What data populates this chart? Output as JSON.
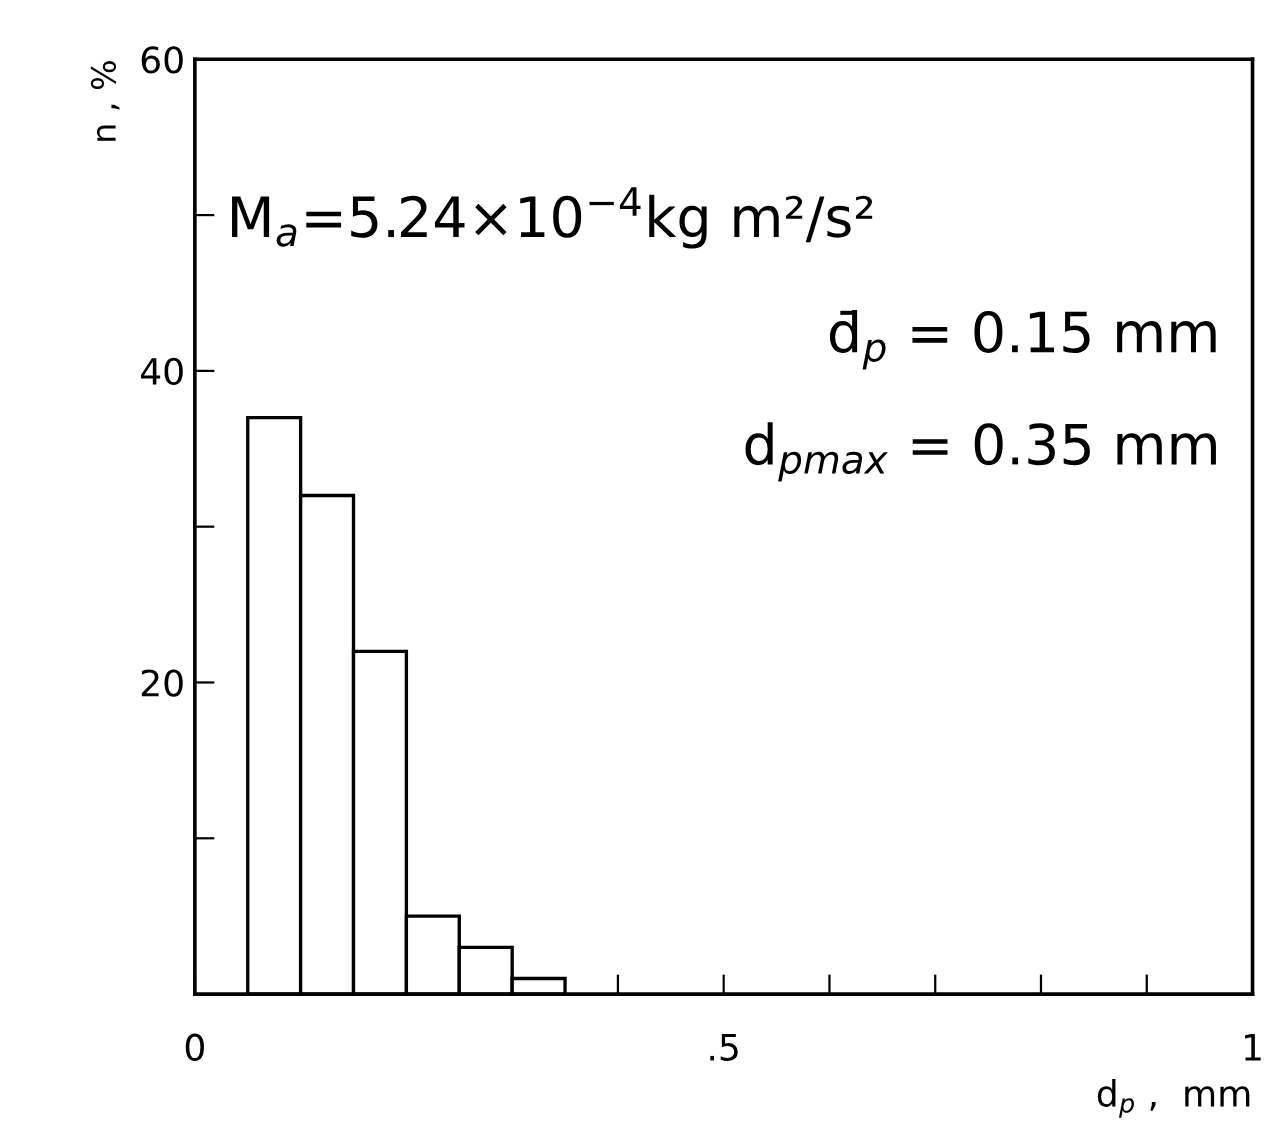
{
  "chart_data": {
    "type": "histogram",
    "xlabel": "d$_{p}$ ,  mm",
    "ylabel": "n , %",
    "bins": [
      0.05,
      0.1,
      0.15,
      0.2,
      0.25,
      0.3,
      0.35
    ],
    "values": [
      37,
      32,
      22,
      5,
      3,
      1
    ],
    "color": "#ffffff",
    "xlim": [
      0,
      1
    ],
    "ylim": [
      0,
      60
    ],
    "xticks": [
      {
        "value": 0,
        "label": "0"
      },
      {
        "value": 0.1,
        "label": null
      },
      {
        "value": 0.2,
        "label": null
      },
      {
        "value": 0.3,
        "label": null
      },
      {
        "value": 0.4,
        "label": null
      },
      {
        "value": 0.5,
        "label": ".5"
      },
      {
        "value": 0.6,
        "label": null
      },
      {
        "value": 0.7,
        "label": null
      },
      {
        "value": 0.8,
        "label": null
      },
      {
        "value": 0.9,
        "label": null
      },
      {
        "value": 1,
        "label": "1"
      }
    ],
    "yticks": [
      {
        "value": 10,
        "label": null
      },
      20,
      {
        "value": 30,
        "label": null
      },
      40,
      {
        "value": 50,
        "label": null
      },
      60
    ],
    "annotations": [
      "M$_{a}$=5.24×10$^{−4}$kg m²/s²",
      "d̄$_{p}$ = 0.15 mm",
      "d$_{pmax}$ = 0.35 mm"
    ],
    "grid": false
  }
}
